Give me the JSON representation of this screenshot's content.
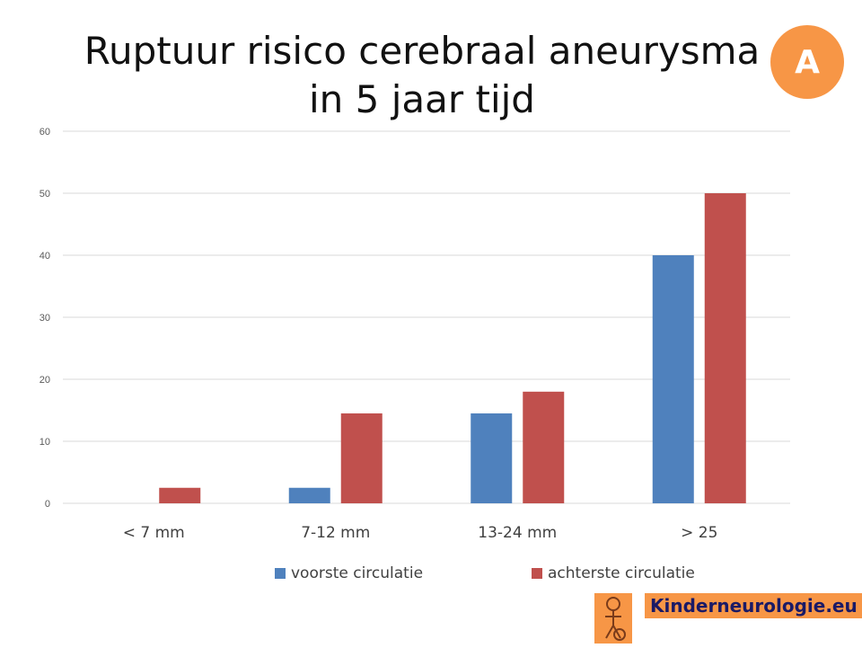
{
  "badge": {
    "label": "A",
    "color": "#f79646"
  },
  "logo": {
    "text": "Kinderneurologie.eu",
    "icon": "child-figure-icon",
    "color": "#f79646"
  },
  "chart_data": {
    "type": "bar",
    "title": "Ruptuur risico cerebraal aneurysma in 5 jaar tijd",
    "title_lines": [
      "Ruptuur risico cerebraal aneurysma",
      "in 5 jaar tijd"
    ],
    "categories": [
      "< 7 mm",
      "7-12 mm",
      "13-24 mm",
      "> 25"
    ],
    "series": [
      {
        "name": "voorste circulatie",
        "values": [
          0,
          2.5,
          14.5,
          40
        ],
        "color": "#4f81bd"
      },
      {
        "name": "achterste circulatie",
        "values": [
          2.5,
          14.5,
          18,
          50
        ],
        "color": "#c0504d"
      }
    ],
    "xlabel": "",
    "ylabel": "",
    "ylim": [
      0,
      60
    ],
    "yticks": [
      0,
      10,
      20,
      30,
      40,
      50,
      60
    ],
    "grid": true,
    "legend_position": "bottom"
  }
}
